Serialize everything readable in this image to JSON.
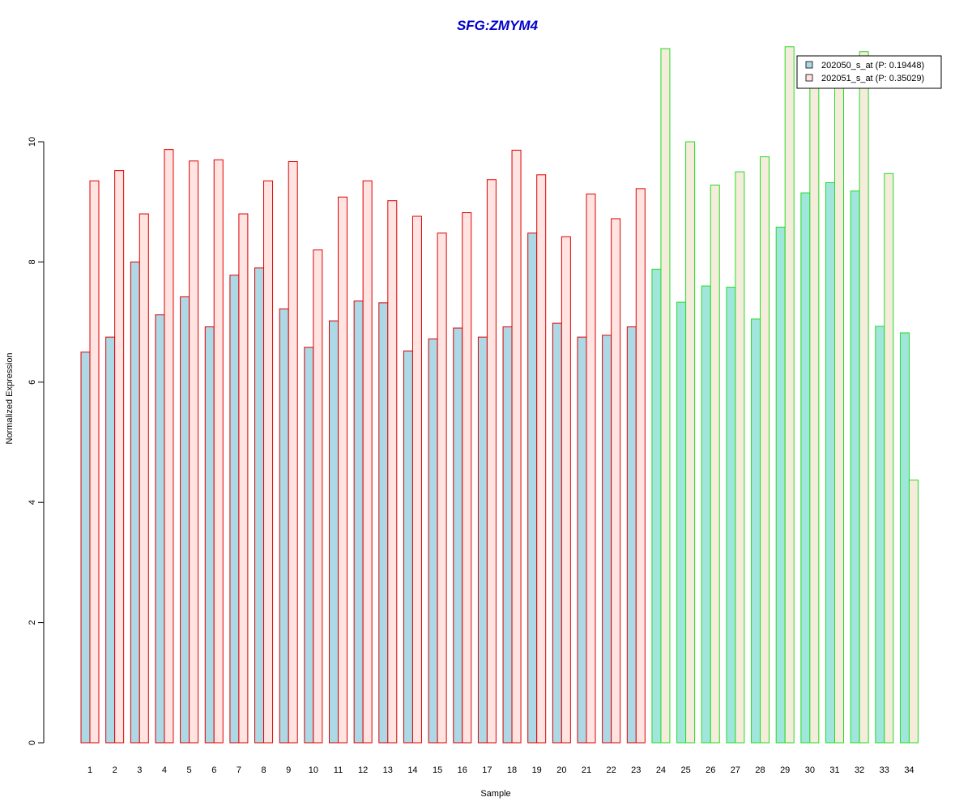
{
  "chart_data": {
    "type": "bar",
    "title": "SFG:ZMYM4",
    "xlabel": "Sample",
    "ylabel": "Normalized Expression",
    "ylim": [
      0,
      11.6
    ],
    "yticks": [
      "0",
      "2",
      "4",
      "6",
      "8",
      "10"
    ],
    "categories": [
      "1",
      "2",
      "3",
      "4",
      "5",
      "6",
      "7",
      "8",
      "9",
      "10",
      "11",
      "12",
      "13",
      "14",
      "15",
      "16",
      "17",
      "18",
      "19",
      "20",
      "21",
      "22",
      "23",
      "24",
      "25",
      "26",
      "27",
      "28",
      "29",
      "30",
      "31",
      "32",
      "33",
      "34"
    ],
    "group_a_count": 23,
    "colors": {
      "title": "#0000cc",
      "group_a_border": "#dd0000",
      "group_b_border": "#22dd22",
      "series1_fill_a": "#add8e6",
      "series2_fill_a": "#ffe4e1",
      "series1_fill_b": "#a0e6dc",
      "series2_fill_b": "#f5ecdc"
    },
    "series": [
      {
        "name": "202050_s_at (P: 0.19448)",
        "values": [
          6.5,
          6.75,
          8.0,
          7.12,
          7.42,
          6.92,
          7.78,
          7.9,
          7.22,
          6.58,
          7.02,
          7.35,
          7.32,
          6.52,
          6.72,
          6.9,
          6.75,
          6.92,
          8.48,
          6.98,
          6.75,
          6.78,
          6.92,
          7.88,
          7.33,
          7.6,
          7.58,
          7.05,
          8.58,
          9.15,
          9.32,
          9.18,
          6.93,
          6.82
        ]
      },
      {
        "name": "202051_s_at (P: 0.35029)",
        "values": [
          9.35,
          9.52,
          8.8,
          9.87,
          9.68,
          9.7,
          8.8,
          9.35,
          9.67,
          8.2,
          9.08,
          9.35,
          9.02,
          8.76,
          8.48,
          8.82,
          9.37,
          9.86,
          9.45,
          8.42,
          9.13,
          8.72,
          9.22,
          11.55,
          10.0,
          9.28,
          9.5,
          9.75,
          11.58,
          11.0,
          11.0,
          11.5,
          9.47,
          4.37
        ]
      }
    ],
    "legend": {
      "placement": "top-right"
    }
  }
}
